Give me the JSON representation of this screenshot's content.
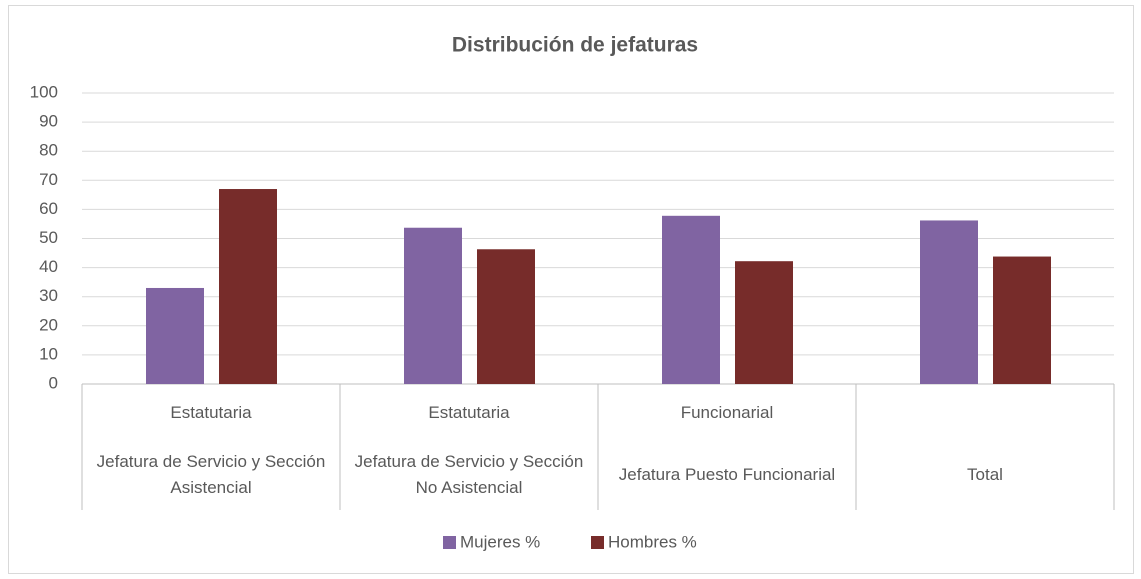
{
  "chart_data": {
    "type": "bar",
    "title": "Distribución de jefaturas",
    "groups": [
      "Estatutaria",
      "Estatutaria",
      "Funcionarial",
      null
    ],
    "categories": [
      "Jefatura de Servicio y Sección Asistencial",
      "Jefatura de Servicio y Sección No Asistencial",
      "Jefatura Puesto Funcionarial",
      "Total"
    ],
    "series": [
      {
        "name": "Mujeres %",
        "color": "#8064a2",
        "values": [
          33,
          53.7,
          57.8,
          56.2
        ]
      },
      {
        "name": "Hombres %",
        "color": "#772c2a",
        "values": [
          67,
          46.3,
          42.2,
          43.8
        ]
      }
    ],
    "ylim": [
      0,
      100
    ],
    "yticks": [
      0,
      10,
      20,
      30,
      40,
      50,
      60,
      70,
      80,
      90,
      100
    ],
    "grid": true,
    "legend": "bottom"
  }
}
